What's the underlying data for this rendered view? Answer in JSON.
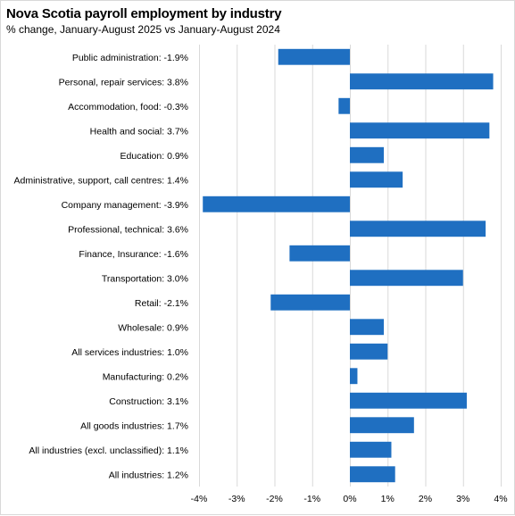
{
  "chart_data": {
    "type": "bar",
    "orientation": "horizontal",
    "title": "Nova Scotia payroll employment by industry",
    "subtitle": "% change, January-August 2025 vs January-August 2024",
    "xlim": [
      -4,
      4
    ],
    "x_ticks": [
      "-4%",
      "-3%",
      "-2%",
      "-1%",
      "0%",
      "1%",
      "2%",
      "3%",
      "4%"
    ],
    "x_tick_values": [
      -4,
      -3,
      -2,
      -1,
      0,
      1,
      2,
      3,
      4
    ],
    "grid": true,
    "bar_color": "#1f6fc1",
    "gridline_color": "#d9d9d9",
    "categories": [
      "Public administration: -1.9%",
      "Personal, repair services: 3.8%",
      "Accommodation, food: -0.3%",
      "Health and social: 3.7%",
      "Education: 0.9%",
      "Administrative, support, call centres: 1.4%",
      "Company management: -3.9%",
      "Professional, technical: 3.6%",
      "Finance, Insurance: -1.6%",
      "Transportation: 3.0%",
      "Retail: -2.1%",
      "Wholesale: 0.9%",
      "All services industries: 1.0%",
      "Manufacturing: 0.2%",
      "Construction: 3.1%",
      "All goods industries: 1.7%",
      "All industries (excl. unclassified): 1.1%",
      "All industries: 1.2%"
    ],
    "values": [
      -1.9,
      3.8,
      -0.3,
      3.7,
      0.9,
      1.4,
      -3.9,
      3.6,
      -1.6,
      3.0,
      -2.1,
      0.9,
      1.0,
      0.2,
      3.1,
      1.7,
      1.1,
      1.2
    ]
  }
}
